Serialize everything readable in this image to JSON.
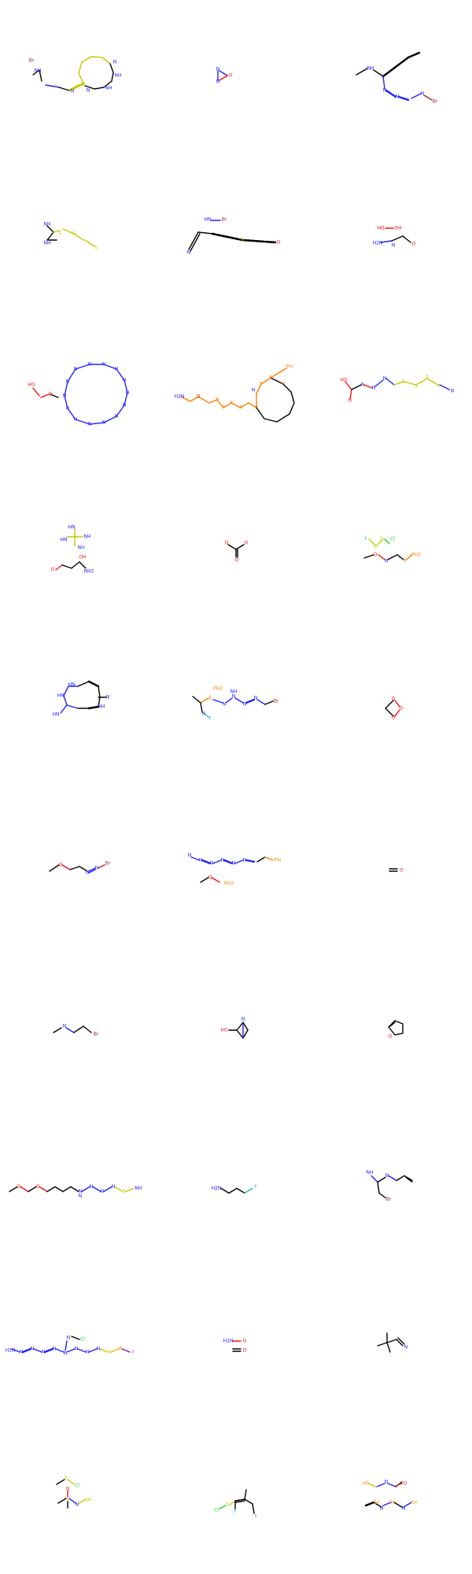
{
  "title": "",
  "colors": {
    "carbon": "#000000",
    "nitrogen": "#2020ff",
    "oxygen": "#ff0d0d",
    "sulfur": "#c8c800",
    "phosphorus": "#ff8000",
    "bromine": "#a62929",
    "fluorine": "#1fb8d0",
    "chlorine": "#1fd01f",
    "iodine": "#940094",
    "selenium": "#ffa100"
  },
  "molecules": [
    {
      "name": "mol-1",
      "labels": [
        "Br",
        "NH",
        "P",
        "N",
        "S",
        "N",
        "NH",
        "NH",
        "N"
      ]
    },
    {
      "name": "mol-2",
      "labels": [
        "N",
        "N",
        "O"
      ]
    },
    {
      "name": "mol-3",
      "labels": [
        "NH",
        "N",
        "N",
        "N",
        "Br"
      ]
    },
    {
      "name": "mol-4",
      "labels": [
        "NH",
        "S",
        "NH",
        "S",
        "S"
      ]
    },
    {
      "name": "mol-5",
      "labels": [
        "HN",
        "Br",
        "N",
        "S",
        "O"
      ]
    },
    {
      "name": "mol-6",
      "labels": [
        "HO",
        "OH",
        "H2N",
        "N",
        "O"
      ]
    },
    {
      "name": "mol-7",
      "labels": [
        "HO",
        "O",
        "N",
        "N",
        "N",
        "N",
        "N",
        "N",
        "N",
        "N",
        "N",
        "N",
        "N",
        "N",
        "N",
        "N"
      ]
    },
    {
      "name": "mol-8",
      "labels": [
        "H2N",
        "O",
        "P",
        "P",
        "P",
        "P",
        "P",
        "N",
        "P",
        "P",
        "PH",
        "P"
      ]
    },
    {
      "name": "mol-9",
      "labels": [
        "HO",
        "N",
        "O",
        "N",
        "N",
        "S",
        "S",
        "S",
        "S",
        "N"
      ]
    },
    {
      "name": "mol-10",
      "labels": [
        "HN",
        "NH",
        "HN",
        "NH",
        "OH",
        "O",
        "NH2"
      ]
    },
    {
      "name": "mol-11",
      "labels": [
        "O",
        "O",
        "O"
      ]
    },
    {
      "name": "mol-12",
      "labels": [
        "F",
        "S",
        "S",
        "Cl",
        "O",
        "N",
        "P",
        "PH2"
      ]
    },
    {
      "name": "mol-13",
      "labels": [
        "HN",
        "HN",
        "HN",
        "N",
        "NH"
      ]
    },
    {
      "name": "mol-14",
      "labels": [
        "PH2",
        "S",
        "N",
        "N",
        "NH",
        "N",
        "N",
        "Br",
        "N",
        "F"
      ]
    },
    {
      "name": "mol-15",
      "labels": [
        "O",
        "O",
        "O"
      ]
    },
    {
      "name": "mol-16",
      "labels": [
        "O",
        "N",
        "N",
        "Br"
      ]
    },
    {
      "name": "mol-17",
      "labels": [
        "N",
        "N",
        "N",
        "N",
        "N",
        "N",
        "PH",
        "O",
        "PH3"
      ]
    },
    {
      "name": "mol-18",
      "labels": [
        "O"
      ]
    },
    {
      "name": "mol-19",
      "labels": [
        "N",
        "Br"
      ]
    },
    {
      "name": "mol-20",
      "labels": [
        "HO",
        "N"
      ]
    },
    {
      "name": "mol-21",
      "labels": [
        "O"
      ]
    },
    {
      "name": "mol-22",
      "labels": [
        "O",
        "O",
        "N",
        "N",
        "N",
        "N",
        "N",
        "S",
        "NH"
      ]
    },
    {
      "name": "mol-23",
      "labels": [
        "H2N",
        "F"
      ]
    },
    {
      "name": "mol-24",
      "labels": [
        "NH",
        "N",
        "Br"
      ]
    },
    {
      "name": "mol-25",
      "labels": [
        "H2N",
        "N",
        "N",
        "N",
        "N",
        "N",
        "N",
        "N",
        "N",
        "S",
        "P",
        "I",
        "N",
        "Cl"
      ]
    },
    {
      "name": "mol-26",
      "labels": [
        "H2N",
        "O",
        "O"
      ]
    },
    {
      "name": "mol-27",
      "labels": [
        "N"
      ]
    },
    {
      "name": "mol-28",
      "labels": [
        "S",
        "Cl",
        "S",
        "O",
        "N",
        "SH"
      ]
    },
    {
      "name": "mol-29",
      "labels": [
        "Cl",
        "S",
        "F",
        "I"
      ]
    },
    {
      "name": "mol-30",
      "labels": [
        "HS",
        "N",
        "O",
        "Se",
        "N",
        "Se",
        "N",
        "Se"
      ]
    }
  ]
}
